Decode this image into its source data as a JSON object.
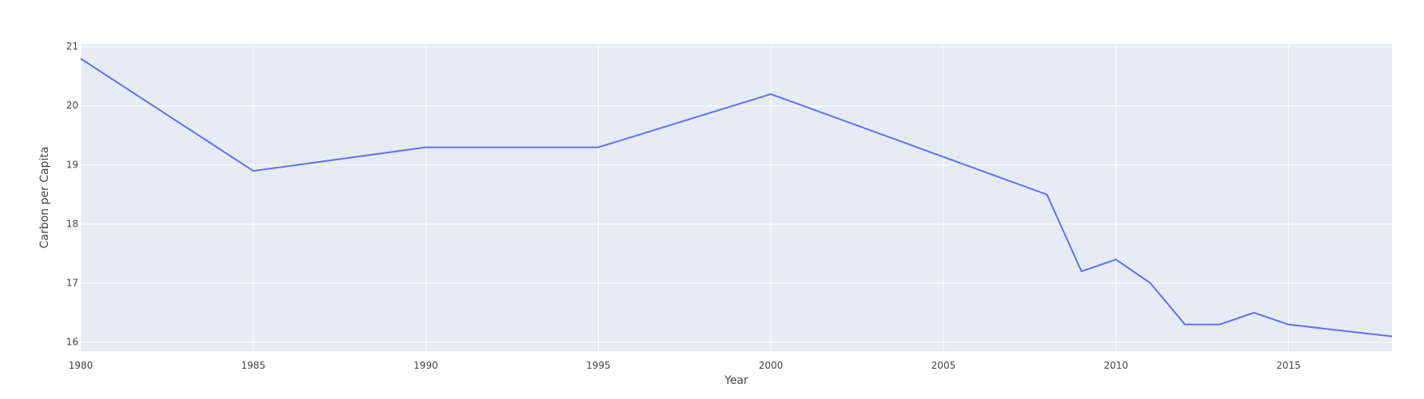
{
  "chart_data": {
    "type": "line",
    "title": "",
    "xlabel": "Year",
    "ylabel": "Carbon per Capita",
    "xlim": [
      1980,
      2018
    ],
    "ylim": [
      15.85,
      21.05
    ],
    "xticks": [
      1980,
      1985,
      1990,
      1995,
      2000,
      2005,
      2010,
      2015
    ],
    "yticks": [
      16,
      17,
      18,
      19,
      20,
      21
    ],
    "grid": true,
    "colors": {
      "plot_bg": "#E5ECF6",
      "grid": "#ffffff",
      "line": "#636EFA",
      "text": "#444444"
    },
    "series": [
      {
        "x": [
          1980,
          1985,
          1990,
          1995,
          2000,
          2008,
          2009,
          2010,
          2011,
          2012,
          2013,
          2014,
          2015,
          2018
        ],
        "y": [
          20.8,
          18.9,
          19.3,
          19.3,
          20.2,
          18.5,
          17.2,
          17.4,
          17.0,
          16.3,
          16.3,
          16.5,
          16.3,
          16.1
        ]
      }
    ]
  }
}
